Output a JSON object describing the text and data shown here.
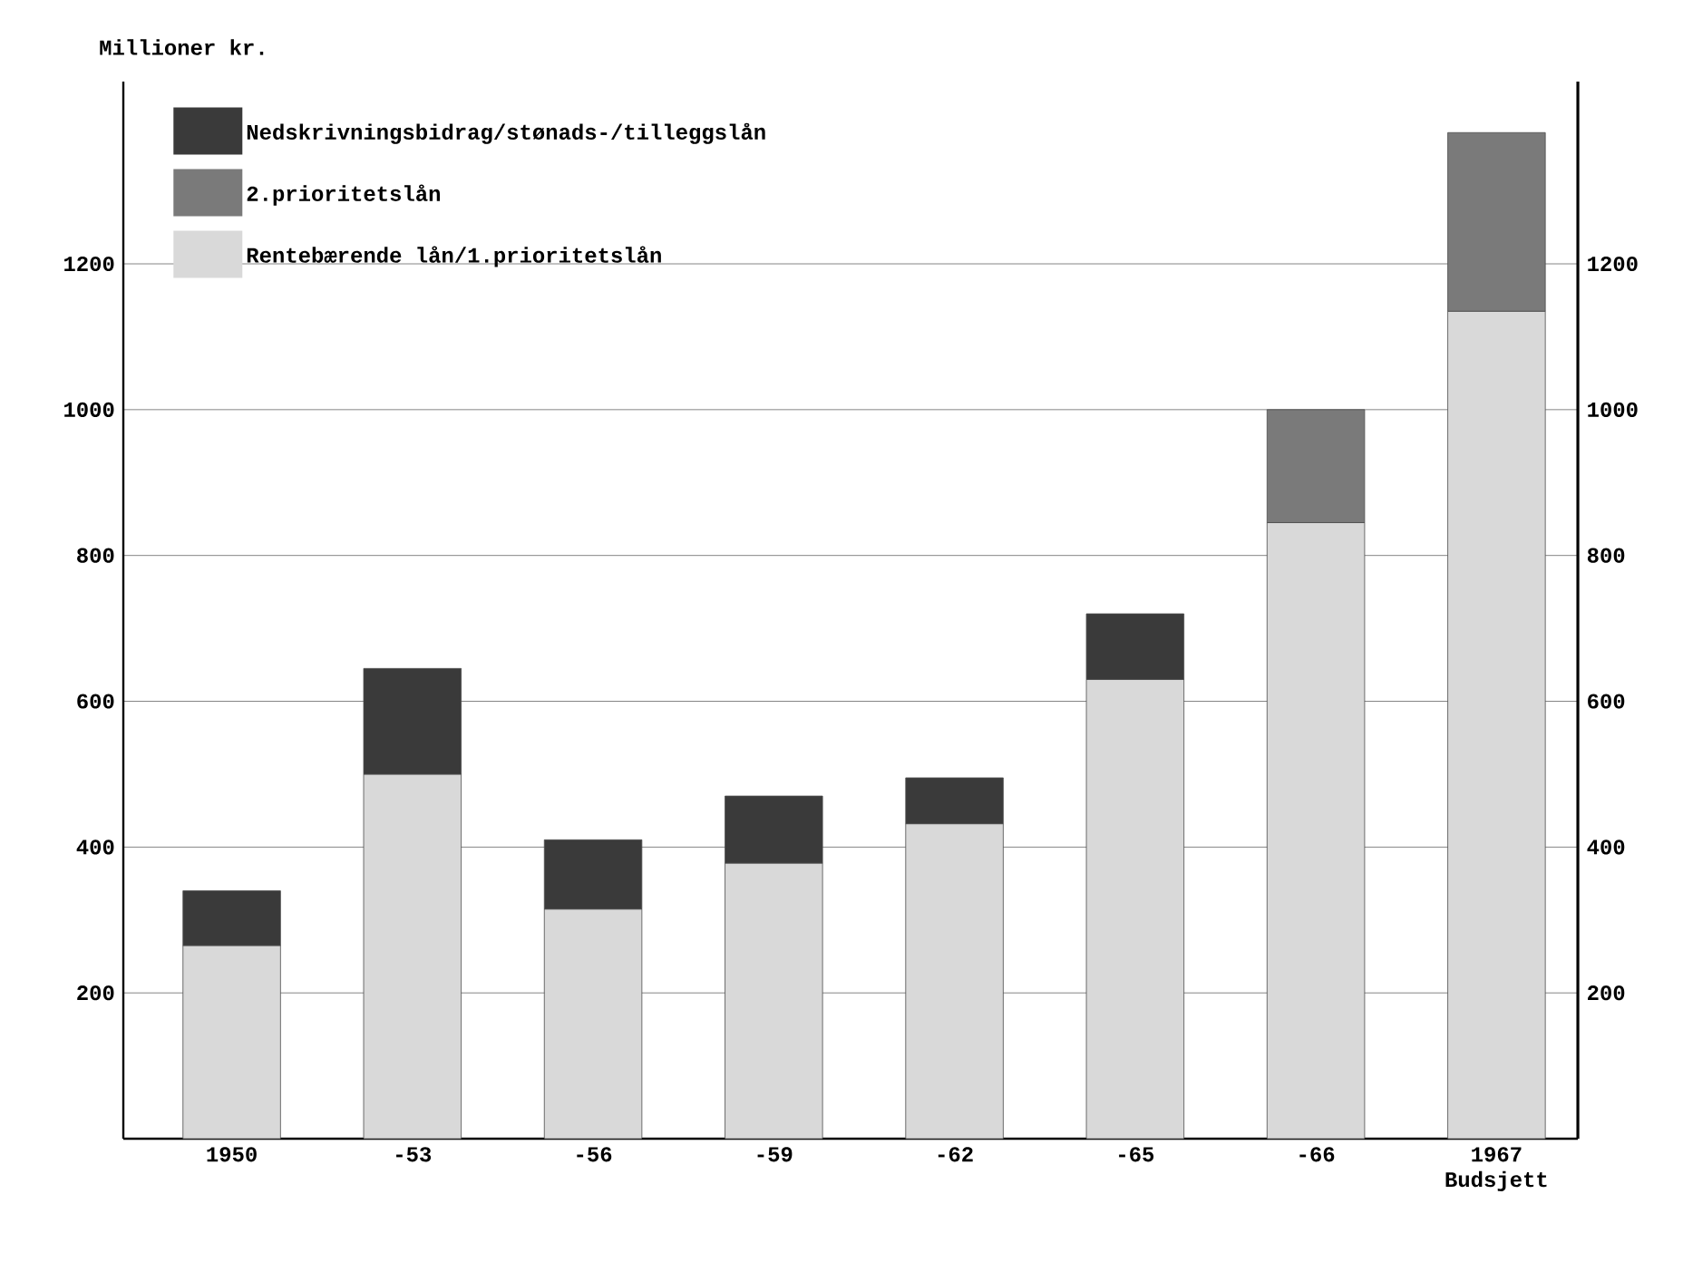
{
  "chart_data": {
    "type": "bar",
    "stacked": true,
    "ylabel": "Millioner kr.",
    "categories": [
      "1950",
      "-53",
      "-56",
      "-59",
      "-62",
      "-65",
      "-66",
      "1967 Budsjett"
    ],
    "series": [
      {
        "name": "Rentebærende lån/1.prioritetslån",
        "color": "#d9d9d9",
        "values": [
          265,
          500,
          315,
          378,
          432,
          630,
          845,
          1135
        ]
      },
      {
        "name": "2.prioritetslån",
        "color": "#7a7a7a",
        "values": [
          null,
          null,
          null,
          null,
          null,
          null,
          155,
          245
        ]
      },
      {
        "name": "Nedskrivningsbidrag/stønads-/tilleggslån",
        "color": "#3a3a3a",
        "values": [
          75,
          145,
          95,
          92,
          63,
          90,
          null,
          null
        ]
      }
    ],
    "ylim": [
      0,
      1450
    ],
    "yticks": [
      200,
      400,
      600,
      800,
      1000,
      1200
    ],
    "y2lim": [
      0,
      1450
    ],
    "y2ticks": [
      200,
      400,
      600,
      800,
      1000,
      1200
    ],
    "grid": "y",
    "legend": "top left"
  }
}
